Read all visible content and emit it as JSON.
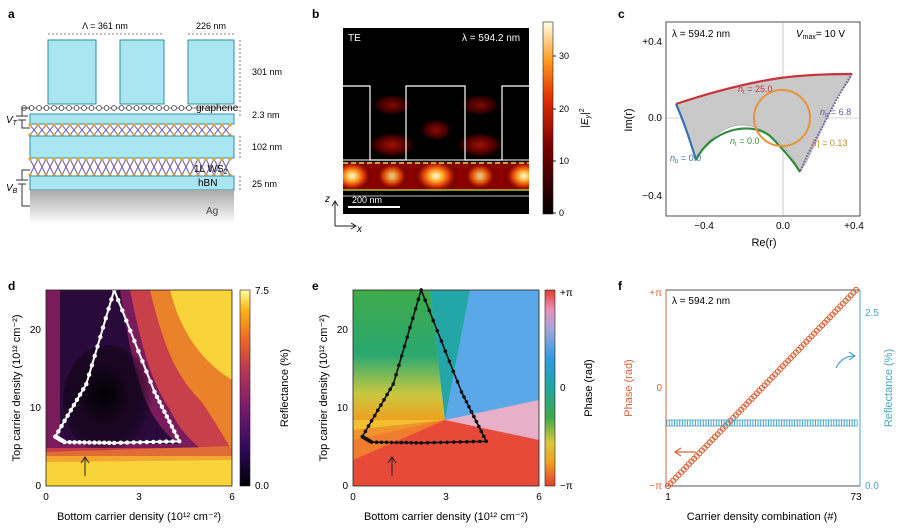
{
  "panel_letters": [
    "a",
    "b",
    "c",
    "d",
    "e",
    "f"
  ],
  "wavelength": "λ = 594.2 nm",
  "a": {
    "period": "Λ = 361 nm",
    "slit": "226 nm",
    "height": "301 nm",
    "gap": "2.3 nm",
    "mid": "102 nm",
    "bottom": "25 nm",
    "graphene": "graphene",
    "ws2": "1L WS",
    "ws2_sub": "2",
    "hbn": "hBN",
    "ag": "Ag",
    "vt": "V",
    "vt_sub": "T",
    "vb": "V",
    "vb_sub": "B"
  },
  "b": {
    "mode": "TE",
    "scale": "200 nm",
    "z": "z",
    "x": "x",
    "cb_ticks": [
      "30",
      "20",
      "10",
      "0"
    ],
    "cb_label": "|E_y|^2"
  },
  "c": {
    "vmax": "V",
    "vmax_sub": "max",
    "vmax_val": "= 10 V",
    "ylabel": "Im(r)",
    "xlabel": "Re(r)",
    "xticks": [
      "−0.4",
      "0.0",
      "+0.4"
    ],
    "yticks": [
      "+0.4",
      "0.0",
      "−0.4"
    ],
    "labels": {
      "nt25": "n",
      "nt25_sub": "t",
      "nt25_val": " = 25.0",
      "nb68": "n",
      "nb68_sub": "b",
      "nb68_val": " = 6.8",
      "nb0": "n",
      "nb0_sub": "b",
      "nb0_val": " = 0.0",
      "nt0": "n",
      "nt0_sub": "t",
      "nt0_val": " = 0.0",
      "r013": "|r| = 0.13"
    }
  },
  "d": {
    "xlabel": "Bottom carrier density (10¹² cm⁻²)",
    "ylabel": "Top carrier density (10¹² cm⁻²)",
    "xticks": [
      "0",
      "3",
      "6"
    ],
    "yticks": [
      "20",
      "10",
      "0"
    ],
    "cb_ticks": [
      "7.5",
      "0.0"
    ],
    "cb_label": "Reflectance (%)"
  },
  "e": {
    "xlabel": "Bottom carrier density (10¹² cm⁻²)",
    "ylabel": "Top carrier density (10¹² cm⁻²)",
    "xticks": [
      "0",
      "3",
      "6"
    ],
    "yticks": [
      "20",
      "10",
      "0"
    ],
    "cb_ticks": [
      "+π",
      "0",
      "−π"
    ],
    "cb_label": "Phase (rad)"
  },
  "f": {
    "xlabel": "Carrier density combination (#)",
    "ylabel_left": "Phase (rad)",
    "ylabel_right": "Reflectance (%)",
    "xticks": [
      "1",
      "73"
    ],
    "yticks_left": [
      "+π",
      "0",
      "−π"
    ],
    "yticks_right": [
      "2.5",
      "0.0"
    ]
  },
  "colors": {
    "phase": "#d9643a",
    "refl": "#4aa3c8",
    "accent_orange": "#e8923a",
    "red": "#c8323b",
    "blue": "#3a6fb0",
    "green": "#2e8b3a",
    "purple": "#6b5aa8"
  },
  "chart_data": [
    {
      "type": "line",
      "title": "",
      "xlabel": "Carrier density combination (#)",
      "ylabel": "Phase (rad)",
      "x_range": [
        1,
        73
      ],
      "ylim": [
        -3.1416,
        3.1416
      ],
      "series": [
        {
          "name": "Phase",
          "x": [
            1,
            73
          ],
          "y": [
            -3.1416,
            3.1416
          ]
        },
        {
          "name": "Reflectance",
          "x": [
            1,
            73
          ],
          "y": [
            0.9,
            0.9
          ],
          "unit": "%",
          "ylim": [
            0,
            2.8
          ]
        }
      ]
    }
  ]
}
